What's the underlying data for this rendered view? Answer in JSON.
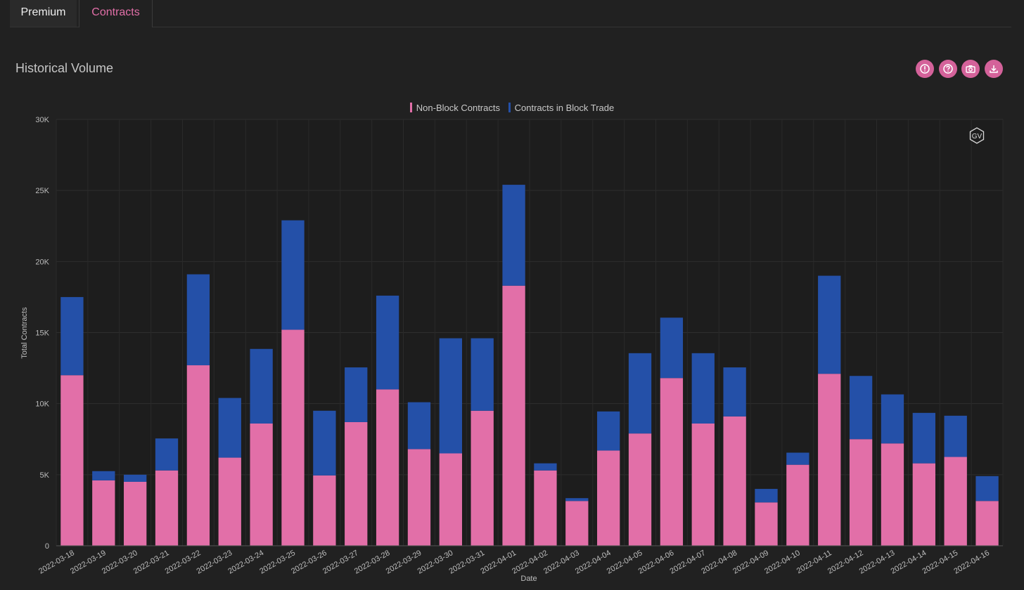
{
  "tabs": {
    "premium": "Premium",
    "contracts": "Contracts"
  },
  "header": {
    "title": "Historical Volume"
  },
  "toolbar": {
    "icons": [
      "alert-circle-icon",
      "help-circle-icon",
      "camera-icon",
      "download-icon"
    ]
  },
  "watermark": "GV",
  "colors": {
    "non_block": "#e26fa8",
    "block": "#2450a8",
    "accent": "#d4629a",
    "background": "#212121"
  },
  "chart_data": {
    "type": "bar",
    "stacked": true,
    "categories": [
      "2022-03-18",
      "2022-03-19",
      "2022-03-20",
      "2022-03-21",
      "2022-03-22",
      "2022-03-23",
      "2022-03-24",
      "2022-03-25",
      "2022-03-26",
      "2022-03-27",
      "2022-03-28",
      "2022-03-29",
      "2022-03-30",
      "2022-03-31",
      "2022-04-01",
      "2022-04-02",
      "2022-04-03",
      "2022-04-04",
      "2022-04-05",
      "2022-04-06",
      "2022-04-07",
      "2022-04-08",
      "2022-04-09",
      "2022-04-10",
      "2022-04-11",
      "2022-04-12",
      "2022-04-13",
      "2022-04-14",
      "2022-04-15",
      "2022-04-16"
    ],
    "series": [
      {
        "name": "Non-Block Contracts",
        "color": "#e26fa8",
        "values": [
          12000,
          4600,
          4500,
          5300,
          12700,
          6200,
          8600,
          15200,
          4950,
          8700,
          11000,
          6800,
          6500,
          9500,
          18300,
          5300,
          3150,
          6700,
          7900,
          11800,
          8600,
          9100,
          3050,
          5700,
          12100,
          7500,
          7200,
          5800,
          6250,
          3150
        ]
      },
      {
        "name": "Contracts in Block Trade",
        "color": "#2450a8",
        "values": [
          5500,
          650,
          500,
          2250,
          6400,
          4200,
          5250,
          7700,
          4550,
          3850,
          6600,
          3300,
          8100,
          5100,
          7100,
          500,
          200,
          2750,
          5650,
          4250,
          4950,
          3450,
          950,
          850,
          6900,
          4450,
          3450,
          3550,
          2900,
          1750
        ]
      }
    ],
    "xlabel": "Date",
    "ylabel": "Total Contracts",
    "ylim": [
      0,
      30000
    ],
    "yticks": [
      "0",
      "5K",
      "10K",
      "15K",
      "20K",
      "25K",
      "30K"
    ],
    "grid": true,
    "legend": "top-center"
  }
}
